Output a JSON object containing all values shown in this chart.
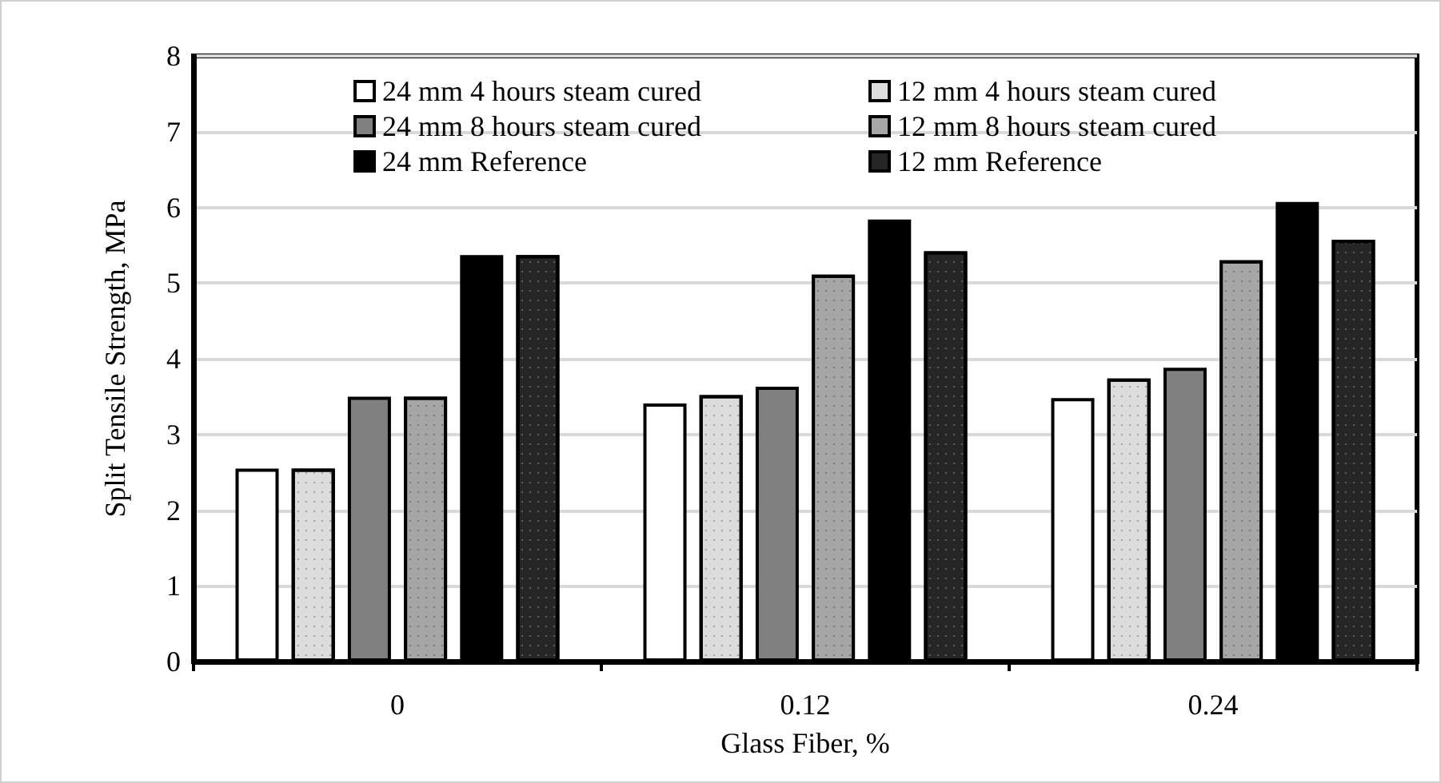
{
  "chart_data": {
    "type": "bar",
    "xlabel": "Glass Fiber, %",
    "ylabel": "Split Tensile Strength, MPa",
    "categories": [
      "0",
      "0.12",
      "0.24"
    ],
    "series": [
      {
        "name": "24 mm 4 hours steam cured",
        "color": "#ffffff",
        "values": [
          2.55,
          3.41,
          3.48
        ]
      },
      {
        "name": "12 mm 4 hours steam cured",
        "color": "#dcdcdc",
        "values": [
          2.55,
          3.52,
          3.74
        ]
      },
      {
        "name": "24 mm 8 hours steam cured",
        "color": "#808080",
        "values": [
          3.5,
          3.63,
          3.88
        ]
      },
      {
        "name": "12 mm 8 hours steam cured",
        "color": "#a6a6a6",
        "values": [
          3.5,
          5.11,
          5.3
        ]
      },
      {
        "name": "24 mm Reference",
        "color": "#000000",
        "values": [
          5.37,
          5.84,
          6.07
        ]
      },
      {
        "name": "12 mm Reference",
        "color": "#262626",
        "values": [
          5.37,
          5.42,
          5.57
        ]
      }
    ],
    "ylim": [
      0,
      8
    ],
    "yticks": [
      0,
      1,
      2,
      3,
      4,
      5,
      6,
      7,
      8
    ],
    "grid": "y",
    "legend": "top"
  }
}
